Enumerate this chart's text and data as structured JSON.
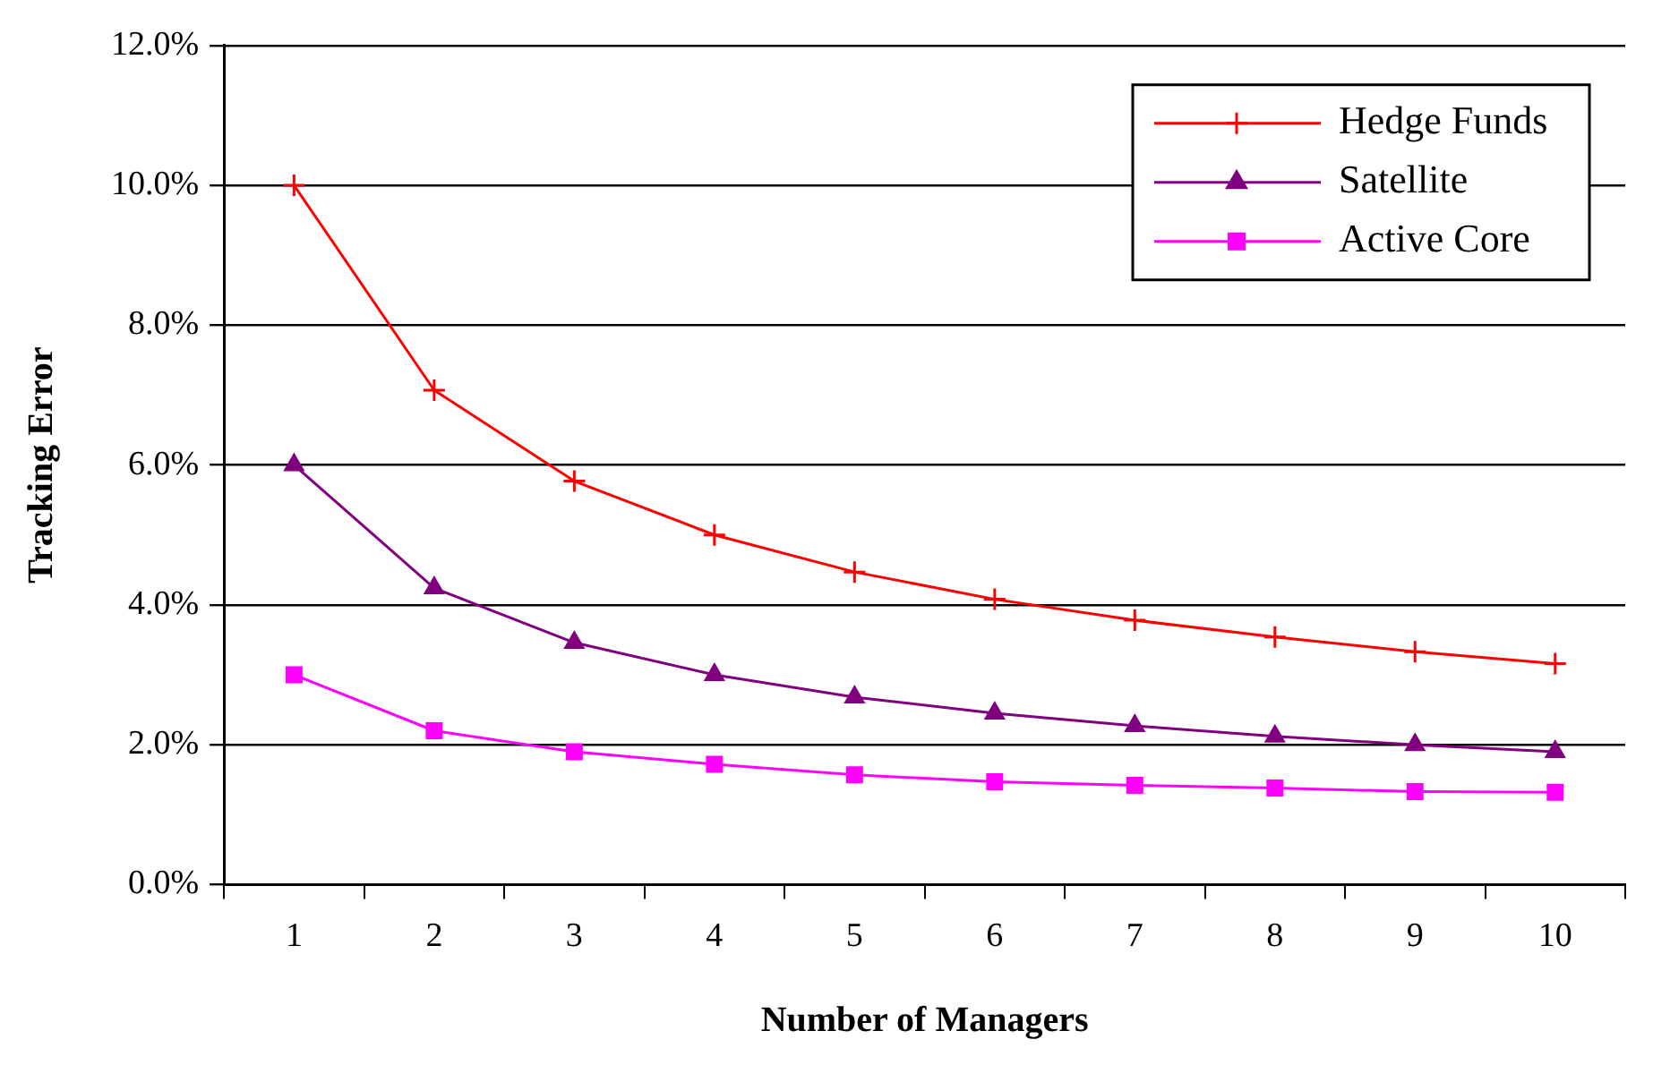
{
  "chart_data": {
    "type": "line",
    "xlabel": "Number of Managers",
    "ylabel": "Tracking Error",
    "categories": [
      "1",
      "2",
      "3",
      "4",
      "5",
      "6",
      "7",
      "8",
      "9",
      "10"
    ],
    "series": [
      {
        "name": "Hedge Funds",
        "color": "#ff0000",
        "marker": "cross",
        "values": [
          10.0,
          7.07,
          5.77,
          5.0,
          4.47,
          4.08,
          3.78,
          3.54,
          3.33,
          3.16
        ]
      },
      {
        "name": "Satellite",
        "color": "#800080",
        "marker": "triangle",
        "values": [
          6.0,
          4.24,
          3.46,
          3.0,
          2.68,
          2.45,
          2.27,
          2.12,
          2.0,
          1.9
        ]
      },
      {
        "name": "Active Core",
        "color": "#ff00ff",
        "marker": "square",
        "values": [
          3.0,
          2.2,
          1.9,
          1.72,
          1.57,
          1.47,
          1.42,
          1.38,
          1.33,
          1.32
        ]
      }
    ],
    "ylim": [
      0,
      12
    ],
    "yticks": [
      {
        "value": 0,
        "label": "0.0%"
      },
      {
        "value": 2,
        "label": "2.0%"
      },
      {
        "value": 4,
        "label": "4.0%"
      },
      {
        "value": 6,
        "label": "6.0%"
      },
      {
        "value": 8,
        "label": "8.0%"
      },
      {
        "value": 10,
        "label": "10.0%"
      },
      {
        "value": 12,
        "label": "12.0%"
      }
    ],
    "grid": "y",
    "legend": "top right"
  }
}
